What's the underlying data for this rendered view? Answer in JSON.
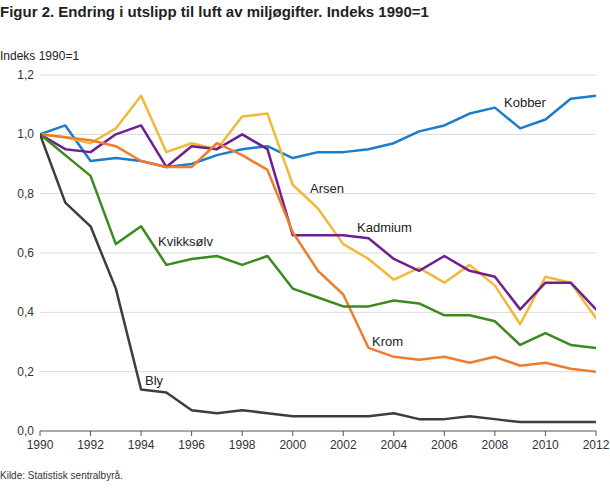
{
  "chart_data": {
    "type": "line",
    "title": "Figur 2. Endring i utslipp til luft av miljøgifter. Indeks 1990=1",
    "y_label": "Indeks 1990=1",
    "source": "Kilde: Statistisk sentralbyrå.",
    "x": [
      1990,
      1991,
      1992,
      1993,
      1994,
      1995,
      1996,
      1997,
      1998,
      1999,
      2000,
      2001,
      2002,
      2003,
      2004,
      2005,
      2006,
      2007,
      2008,
      2009,
      2010,
      2011,
      2012
    ],
    "xlim": [
      1990,
      2012
    ],
    "xticks": [
      1990,
      1992,
      1994,
      1996,
      1998,
      2000,
      2002,
      2004,
      2006,
      2008,
      2010,
      2012
    ],
    "ylim": [
      0,
      1.2
    ],
    "yticks": [
      {
        "value": 0,
        "label": "0,0"
      },
      {
        "value": 0.2,
        "label": "0,2"
      },
      {
        "value": 0.4,
        "label": "0,4"
      },
      {
        "value": 0.6,
        "label": "0,6"
      },
      {
        "value": 0.8,
        "label": "0,8"
      },
      {
        "value": 1.0,
        "label": "1,0"
      },
      {
        "value": 1.2,
        "label": "1,2"
      }
    ],
    "grid": true,
    "series": [
      {
        "name": "Kobber",
        "color": "#1a7ccb",
        "values": [
          1.0,
          1.03,
          0.91,
          0.92,
          0.91,
          0.89,
          0.9,
          0.93,
          0.95,
          0.96,
          0.92,
          0.94,
          0.94,
          0.95,
          0.97,
          1.01,
          1.03,
          1.07,
          1.09,
          1.02,
          1.05,
          1.12,
          1.13
        ]
      },
      {
        "name": "Arsen",
        "color": "#f0b93a",
        "values": [
          1.0,
          0.99,
          0.97,
          1.02,
          1.13,
          0.94,
          0.97,
          0.95,
          1.06,
          1.07,
          0.83,
          0.75,
          0.63,
          0.58,
          0.51,
          0.55,
          0.5,
          0.56,
          0.49,
          0.36,
          0.52,
          0.5,
          0.38
        ]
      },
      {
        "name": "Kadmium",
        "color": "#6f1f8e",
        "values": [
          1.0,
          0.95,
          0.94,
          1.0,
          1.03,
          0.89,
          0.96,
          0.95,
          1.0,
          0.95,
          0.66,
          0.66,
          0.66,
          0.65,
          0.58,
          0.54,
          0.59,
          0.54,
          0.52,
          0.41,
          0.5,
          0.5,
          0.41
        ]
      },
      {
        "name": "Krom",
        "color": "#ef7d2b",
        "values": [
          1.0,
          0.99,
          0.98,
          0.96,
          0.91,
          0.89,
          0.89,
          0.97,
          0.93,
          0.88,
          0.67,
          0.54,
          0.46,
          0.28,
          0.25,
          0.24,
          0.25,
          0.23,
          0.25,
          0.22,
          0.23,
          0.21,
          0.2
        ]
      },
      {
        "name": "Kvikksølv",
        "color": "#3a8a1e",
        "values": [
          1.0,
          0.93,
          0.86,
          0.63,
          0.69,
          0.56,
          0.58,
          0.59,
          0.56,
          0.59,
          0.48,
          0.45,
          0.42,
          0.42,
          0.44,
          0.43,
          0.39,
          0.39,
          0.37,
          0.29,
          0.33,
          0.29,
          0.28
        ]
      },
      {
        "name": "Bly",
        "color": "#3d3d3d",
        "values": [
          1.0,
          0.77,
          0.69,
          0.48,
          0.14,
          0.13,
          0.07,
          0.06,
          0.07,
          0.06,
          0.05,
          0.05,
          0.05,
          0.05,
          0.06,
          0.04,
          0.04,
          0.05,
          0.04,
          0.03,
          0.03,
          0.03,
          0.03
        ]
      }
    ]
  }
}
